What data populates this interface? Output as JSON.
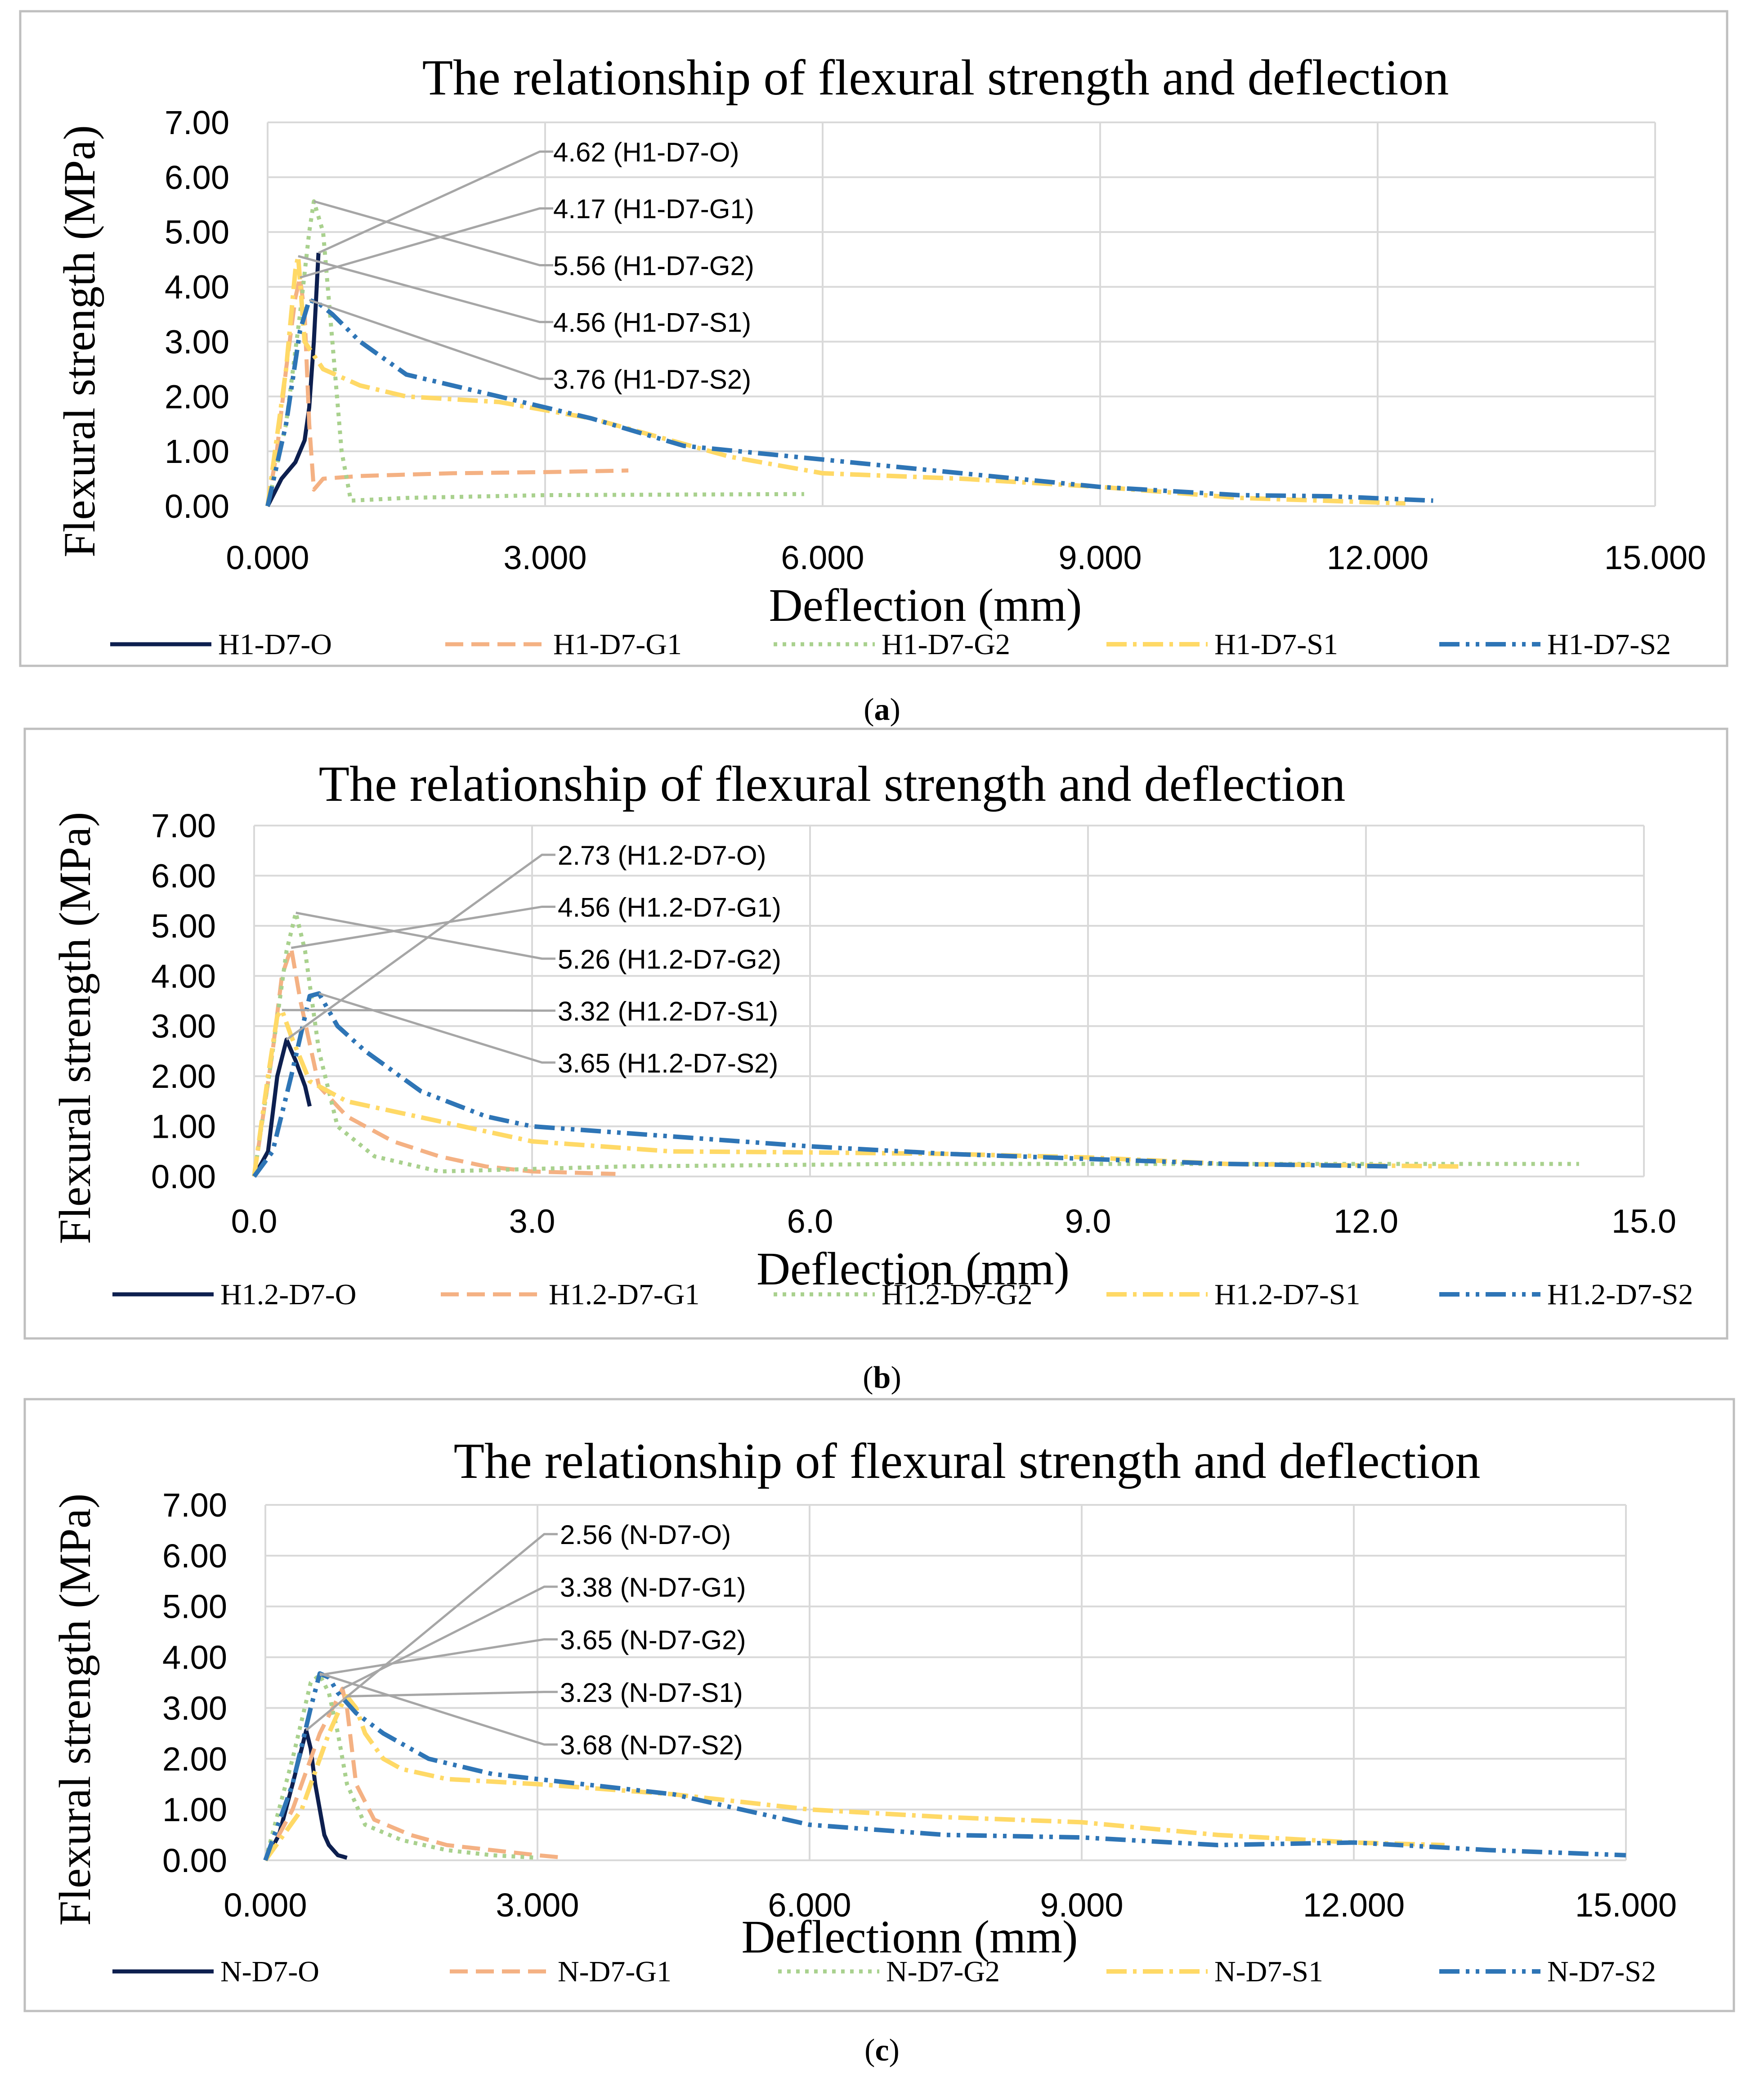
{
  "colors": {
    "O": "#0d1f4f",
    "G1": "#f4b183",
    "G2": "#a9d18e",
    "S1": "#ffd966",
    "S2": "#2e75b6",
    "grid": "#d9d9d9",
    "callout": "#a6a6a6",
    "frame": "#bfbfbf"
  },
  "chart_data": [
    {
      "type": "line",
      "panel_label": "a",
      "title": "The relationship  of flexural  strength  and  deflection",
      "xlabel": "Deflection  (mm)",
      "ylabel": "Flexural strength (MPa)",
      "xlim": [
        0,
        15
      ],
      "ylim": [
        0,
        7
      ],
      "x_ticks": [
        "0.000",
        "3.000",
        "6.000",
        "9.000",
        "12.000",
        "15.000"
      ],
      "y_ticks": [
        "0.00",
        "1.00",
        "2.00",
        "3.00",
        "4.00",
        "5.00",
        "6.00",
        "7.00"
      ],
      "series": [
        {
          "name": "H1-D7-O",
          "key": "O",
          "x": [
            0,
            0.15,
            0.3,
            0.4,
            0.45,
            0.5,
            0.55
          ],
          "y": [
            0,
            0.5,
            0.8,
            1.2,
            1.8,
            3.0,
            4.62
          ]
        },
        {
          "name": "H1-D7-G1",
          "key": "G1",
          "x": [
            0,
            0.1,
            0.2,
            0.3,
            0.35,
            0.4,
            0.45,
            0.5,
            0.6,
            1.0,
            2.0,
            3.0,
            3.9
          ],
          "y": [
            0,
            1.0,
            2.5,
            3.8,
            4.17,
            3.5,
            1.5,
            0.3,
            0.5,
            0.55,
            0.6,
            0.62,
            0.65
          ]
        },
        {
          "name": "H1-D7-G2",
          "key": "G2",
          "x": [
            0,
            0.2,
            0.35,
            0.45,
            0.5,
            0.6,
            0.7,
            0.8,
            0.9,
            1.5,
            3.0,
            5.8
          ],
          "y": [
            0,
            1.5,
            3.5,
            5.0,
            5.56,
            5.0,
            3.0,
            1.0,
            0.1,
            0.15,
            0.2,
            0.22
          ]
        },
        {
          "name": "H1-D7-S1",
          "key": "S1",
          "x": [
            0,
            0.2,
            0.3,
            0.33,
            0.4,
            0.6,
            1.0,
            1.5,
            2.5,
            3.5,
            5.0,
            6.0,
            7.5,
            9.0,
            10.5,
            12.3
          ],
          "y": [
            0,
            2.5,
            4.3,
            4.56,
            3.0,
            2.5,
            2.2,
            2.0,
            1.9,
            1.6,
            0.9,
            0.6,
            0.5,
            0.35,
            0.15,
            0.05
          ]
        },
        {
          "name": "H1-D7-S2",
          "key": "S2",
          "x": [
            0,
            0.2,
            0.35,
            0.45,
            0.55,
            0.7,
            1.0,
            1.5,
            2.5,
            3.5,
            4.5,
            6.0,
            7.5,
            9.0,
            10.5,
            11.5,
            12.6
          ],
          "y": [
            0,
            1.5,
            3.2,
            3.76,
            3.7,
            3.5,
            3.0,
            2.4,
            2.0,
            1.6,
            1.1,
            0.85,
            0.6,
            0.35,
            0.2,
            0.18,
            0.1
          ]
        }
      ],
      "callouts": [
        "4.62 (H1-D7-O)",
        "4.17  (H1-D7-G1)",
        "5.56 (H1-D7-G2)",
        "4.56  (H1-D7-S1)",
        "3.76 (H1-D7-S2)"
      ],
      "callout_points": [
        [
          0.55,
          4.62
        ],
        [
          0.35,
          4.17
        ],
        [
          0.5,
          5.56
        ],
        [
          0.33,
          4.56
        ],
        [
          0.45,
          3.76
        ]
      ],
      "legend": [
        "H1-D7-O",
        "H1-D7-G1",
        "H1-D7-G2",
        "H1-D7-S1",
        "H1-D7-S2"
      ],
      "legend_position": "bottom"
    },
    {
      "type": "line",
      "panel_label": "b",
      "title": "The relationship  of flexural  strength  and  deflection",
      "xlabel": "Deflection  (mm)",
      "ylabel": "Flexural strength (MPa)",
      "xlim": [
        0,
        15
      ],
      "ylim": [
        0,
        7
      ],
      "x_ticks": [
        "0.0",
        "3.0",
        "6.0",
        "9.0",
        "12.0",
        "15.0"
      ],
      "y_ticks": [
        "0.00",
        "1.00",
        "2.00",
        "3.00",
        "4.00",
        "5.00",
        "6.00",
        "7.00"
      ],
      "series": [
        {
          "name": "H1.2-D7-O",
          "key": "O",
          "x": [
            0,
            0.15,
            0.25,
            0.35,
            0.45,
            0.55,
            0.6
          ],
          "y": [
            0,
            0.5,
            2.0,
            2.73,
            2.3,
            1.8,
            1.4
          ]
        },
        {
          "name": "H1.2-D7-G1",
          "key": "G1",
          "x": [
            0,
            0.2,
            0.3,
            0.4,
            0.5,
            0.7,
            1.0,
            1.5,
            2.0,
            2.5,
            3.0,
            3.9
          ],
          "y": [
            0,
            2.5,
            4.0,
            4.56,
            3.5,
            1.8,
            1.2,
            0.7,
            0.4,
            0.2,
            0.1,
            0.05
          ]
        },
        {
          "name": "H1.2-D7-G2",
          "key": "G2",
          "x": [
            0,
            0.2,
            0.35,
            0.45,
            0.55,
            0.7,
            0.9,
            1.3,
            2.0,
            4.0,
            7.0,
            10.0,
            14.3
          ],
          "y": [
            0,
            2.5,
            4.5,
            5.26,
            4.5,
            2.5,
            1.0,
            0.4,
            0.1,
            0.2,
            0.25,
            0.25,
            0.25
          ]
        },
        {
          "name": "H1.2-D7-S1",
          "key": "S1",
          "x": [
            0,
            0.15,
            0.25,
            0.3,
            0.4,
            0.6,
            1.0,
            2.0,
            3.0,
            4.5,
            6.0,
            7.5,
            9.0,
            10.5,
            12.0,
            13.0
          ],
          "y": [
            0,
            2.0,
            3.2,
            3.32,
            2.8,
            1.9,
            1.5,
            1.1,
            0.7,
            0.5,
            0.48,
            0.45,
            0.38,
            0.25,
            0.22,
            0.2
          ]
        },
        {
          "name": "H1.2-D7-S2",
          "key": "S2",
          "x": [
            0,
            0.2,
            0.4,
            0.6,
            0.7,
            0.9,
            1.2,
            1.8,
            2.5,
            3.0,
            4.5,
            6.0,
            7.5,
            9.0,
            10.5,
            12.3
          ],
          "y": [
            0,
            0.5,
            2.0,
            3.6,
            3.65,
            3.0,
            2.5,
            1.7,
            1.2,
            1.0,
            0.8,
            0.6,
            0.45,
            0.35,
            0.25,
            0.2
          ]
        }
      ],
      "callouts": [
        "2.73 (H1.2-D7-O)",
        "4.56 (H1.2-D7-G1)",
        "5.26 (H1.2-D7-G2)",
        "3.32 (H1.2-D7-S1)",
        "3.65 (H1.2-D7-S2)"
      ],
      "callout_points": [
        [
          0.35,
          2.73
        ],
        [
          0.4,
          4.56
        ],
        [
          0.45,
          5.26
        ],
        [
          0.3,
          3.32
        ],
        [
          0.7,
          3.65
        ]
      ],
      "legend": [
        "H1.2-D7-O",
        "H1.2-D7-G1",
        "H1.2-D7-G2",
        "H1.2-D7-S1",
        "H1.2-D7-S2"
      ],
      "legend_position": "bottom"
    },
    {
      "type": "line",
      "panel_label": "c",
      "title": "The relationship  of flexural  strength  and   deflection",
      "xlabel": "Deflectionn  (mm)",
      "ylabel": "Flexural strength (MPa)",
      "xlim": [
        0,
        15
      ],
      "ylim": [
        0,
        7
      ],
      "x_ticks": [
        "0.000",
        "3.000",
        "6.000",
        "9.000",
        "12.000",
        "15.000"
      ],
      "y_ticks": [
        "0.00",
        "1.00",
        "2.00",
        "3.00",
        "4.00",
        "5.00",
        "6.00",
        "7.00"
      ],
      "series": [
        {
          "name": "N-D7-O",
          "key": "O",
          "x": [
            0,
            0.15,
            0.3,
            0.4,
            0.45,
            0.5,
            0.55,
            0.6,
            0.65,
            0.7,
            0.8,
            0.9
          ],
          "y": [
            0,
            0.5,
            1.5,
            2.2,
            2.56,
            2.2,
            1.5,
            1.0,
            0.5,
            0.3,
            0.1,
            0.05
          ]
        },
        {
          "name": "N-D7-G1",
          "key": "G1",
          "x": [
            0,
            0.3,
            0.6,
            0.8,
            0.85,
            0.9,
            1.0,
            1.2,
            1.6,
            2.0,
            2.5,
            3.0,
            3.3
          ],
          "y": [
            0,
            1.0,
            2.5,
            3.2,
            3.38,
            3.0,
            1.5,
            0.8,
            0.5,
            0.3,
            0.2,
            0.1,
            0.05
          ]
        },
        {
          "name": "N-D7-G2",
          "key": "G2",
          "x": [
            0,
            0.3,
            0.5,
            0.6,
            0.7,
            0.8,
            0.9,
            1.1,
            1.5,
            2.0,
            2.5,
            3.0
          ],
          "y": [
            0,
            2.0,
            3.5,
            3.65,
            3.3,
            2.5,
            1.5,
            0.7,
            0.4,
            0.2,
            0.1,
            0.05
          ]
        },
        {
          "name": "N-D7-S1",
          "key": "S1",
          "x": [
            0,
            0.4,
            0.7,
            0.85,
            0.9,
            1.0,
            1.1,
            1.3,
            1.5,
            2.0,
            3.0,
            4.5,
            6.0,
            7.5,
            9.0,
            10.5,
            12.0,
            13.0
          ],
          "y": [
            0,
            1.0,
            2.5,
            3.1,
            3.23,
            3.0,
            2.5,
            2.0,
            1.8,
            1.6,
            1.5,
            1.3,
            1.0,
            0.85,
            0.75,
            0.5,
            0.35,
            0.3
          ]
        },
        {
          "name": "N-D7-S2",
          "key": "S2",
          "x": [
            0,
            0.3,
            0.5,
            0.6,
            0.7,
            0.8,
            1.0,
            1.3,
            1.8,
            2.5,
            3.0,
            4.5,
            6.0,
            7.5,
            9.0,
            10.5,
            12.0,
            13.5,
            15.0
          ],
          "y": [
            0,
            1.5,
            3.0,
            3.68,
            3.6,
            3.3,
            2.9,
            2.5,
            2.0,
            1.7,
            1.6,
            1.3,
            0.7,
            0.5,
            0.45,
            0.3,
            0.35,
            0.2,
            0.1
          ]
        }
      ],
      "callouts": [
        "2.56 (N-D7-O)",
        "3.38 (N-D7-G1)",
        "3.65 (N-D7-G2)",
        "3.23 (N-D7-S1)",
        "3.68 (N-D7-S2)"
      ],
      "callout_points": [
        [
          0.45,
          2.56
        ],
        [
          0.85,
          3.38
        ],
        [
          0.6,
          3.65
        ],
        [
          0.9,
          3.23
        ],
        [
          0.6,
          3.68
        ]
      ],
      "legend": [
        "N-D7-O",
        "N-D7-G1",
        "N-D7-G2",
        "N-D7-S1",
        "N-D7-S2"
      ],
      "legend_position": "bottom"
    }
  ]
}
